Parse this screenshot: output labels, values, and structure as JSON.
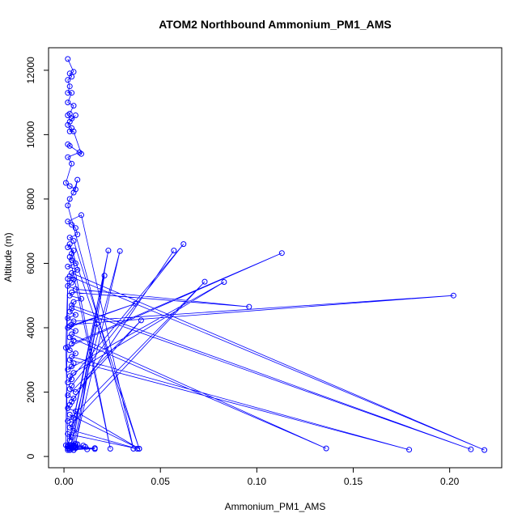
{
  "chart_data": {
    "type": "line",
    "title": "ATOM2 Northbound Ammonium_PM1_AMS",
    "xlabel": "Ammonium_PM1_AMS",
    "ylabel": "Altitude (m)",
    "xlim": [
      -0.008,
      0.227
    ],
    "ylim": [
      -350,
      12700
    ],
    "x_ticks": [
      0,
      0.05,
      0.1,
      0.15,
      0.2
    ],
    "x_tick_labels": [
      "0.00",
      "0.05",
      "0.10",
      "0.15",
      "0.20"
    ],
    "y_ticks": [
      0,
      2000,
      4000,
      6000,
      8000,
      10000,
      12000
    ],
    "y_tick_labels": [
      "0",
      "2000",
      "4000",
      "6000",
      "8000",
      "10000",
      "12000"
    ],
    "grid": false,
    "legend": "none",
    "series_color": "#0000ff",
    "marker": "open-circle",
    "series": [
      {
        "x": [
          0.002,
          0.005,
          0.003,
          0.004,
          0.002,
          0.003,
          0.002,
          0.004,
          0.002,
          0.005,
          0.003,
          0.002,
          0.004,
          0.006,
          0.003,
          0.002,
          0.004,
          0.003,
          0.005,
          0.009,
          0.002,
          0.003,
          0.008,
          0.002,
          0.004,
          0.001,
          0.003,
          0.006,
          0.007,
          0.005,
          0.003,
          0.002,
          0.036,
          0.009,
          0.002,
          0.004,
          0.006,
          0.007,
          0.003,
          0.005,
          0.039,
          0.003,
          0.002,
          0.005,
          0.004,
          0.024,
          0.003,
          0.004,
          0.006,
          0.002,
          0.007,
          0.004,
          0.218,
          0.003,
          0.005,
          0.004,
          0.002,
          0.006,
          0.096,
          0.004,
          0.003,
          0.009,
          0.005,
          0.004,
          0.211,
          0.004,
          0.003,
          0.006,
          0.002,
          0.005,
          0.202,
          0.004,
          0.003,
          0.037,
          0.002,
          0.006,
          0.004,
          0.136,
          0.003,
          0.005,
          0.004,
          0.113,
          0.002,
          0.003,
          0.006,
          0.004,
          0.179,
          0.003,
          0.005,
          0.004,
          0.002,
          0.083,
          0.005,
          0.003,
          0.004,
          0.002,
          0.062,
          0.004,
          0.003,
          0.006,
          0.04,
          0.002,
          0.005,
          0.004,
          0.057,
          0.003,
          0.002,
          0.006,
          0.039,
          0.003,
          0.005,
          0.002,
          0.073,
          0.004,
          0.003,
          0.005,
          0.038,
          0.002,
          0.004,
          0.003,
          0.029,
          0.006,
          0.002,
          0.004,
          0.016,
          0.003,
          0.005,
          0.002,
          0.023,
          0.004,
          0.003,
          0.006,
          0.021,
          0.002,
          0.004,
          0.003,
          0.017,
          0.005,
          0.002,
          0.004,
          0.011,
          0.003,
          0.005,
          0.006,
          0.012,
          0.002,
          0.004,
          0.003,
          0.016,
          0.005,
          0.002,
          0.006,
          0.01,
          0.003,
          0.004,
          0.005,
          0.007,
          0.002,
          0.004,
          0.003,
          0.006,
          0.002,
          0.001,
          0.002,
          0.001,
          0.002
        ],
        "y": [
          12350,
          11950,
          11900,
          11800,
          11700,
          11500,
          11300,
          11300,
          11000,
          10900,
          10650,
          10600,
          10500,
          10600,
          10400,
          10300,
          10200,
          10100,
          10100,
          9400,
          9700,
          9650,
          9450,
          9300,
          9100,
          8500,
          8400,
          8300,
          8600,
          8200,
          8000,
          7800,
          240,
          7500,
          7300,
          7200,
          7100,
          6900,
          6800,
          6700,
          240,
          6600,
          6500,
          6400,
          6300,
          240,
          6200,
          6100,
          6000,
          5900,
          5800,
          5700,
          200,
          5600,
          5500,
          5400,
          5300,
          5200,
          4650,
          5100,
          5000,
          4900,
          4800,
          4700,
          220,
          4600,
          4500,
          4400,
          4300,
          4200,
          5000,
          4100,
          4050,
          4750,
          4000,
          3900,
          3800,
          250,
          3700,
          3600,
          3500,
          6320,
          3400,
          3300,
          3200,
          3100,
          210,
          3000,
          2900,
          2800,
          2700,
          5420,
          2600,
          2500,
          2400,
          2300,
          6600,
          2200,
          2100,
          2000,
          4230,
          1900,
          1800,
          1700,
          6400,
          1600,
          1500,
          1400,
          240,
          1300,
          1200,
          1100,
          5430,
          1000,
          900,
          800,
          240,
          700,
          600,
          500,
          6380,
          400,
          300,
          250,
          230,
          300,
          350,
          300,
          6400,
          250,
          300,
          350,
          5620,
          300,
          250,
          200,
          4120,
          300,
          350,
          250,
          300,
          350,
          280,
          260,
          220,
          300,
          350,
          250,
          260,
          200,
          250,
          280,
          340,
          300,
          250,
          200,
          380,
          300,
          250,
          200,
          260,
          300,
          3380,
          5520,
          350,
          200
        ]
      }
    ]
  }
}
